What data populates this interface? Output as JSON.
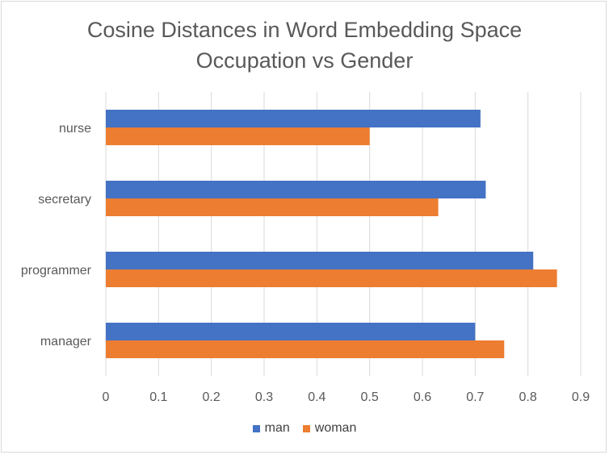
{
  "chart_data": {
    "type": "bar",
    "orientation": "horizontal",
    "title": "Cosine Distances in Word Embedding Space",
    "subtitle": "Occupation vs Gender",
    "categories": [
      "manager",
      "programmer",
      "secretary",
      "nurse"
    ],
    "series": [
      {
        "name": "man",
        "color": "#4472c4",
        "values": [
          0.7,
          0.81,
          0.72,
          0.71
        ]
      },
      {
        "name": "woman",
        "color": "#ed7d31",
        "values": [
          0.755,
          0.855,
          0.63,
          0.5
        ]
      }
    ],
    "xlim": [
      0,
      0.9
    ],
    "xticks": [
      "0",
      "0.1",
      "0.2",
      "0.3",
      "0.4",
      "0.5",
      "0.6",
      "0.7",
      "0.8",
      "0.9"
    ],
    "grid": true,
    "legend_position": "bottom"
  }
}
